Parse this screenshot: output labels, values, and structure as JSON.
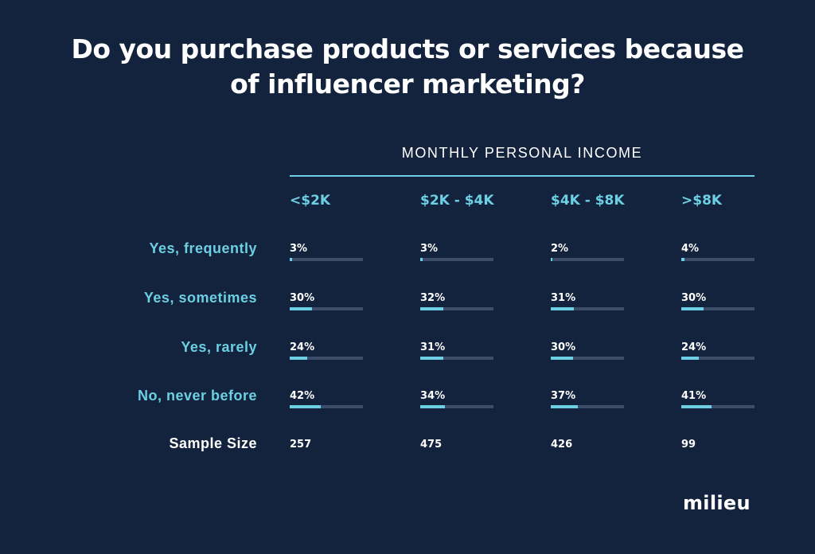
{
  "title": {
    "line1": "Do you purchase products or services because",
    "line2": "of influencer marketing?"
  },
  "logo": "milieu",
  "colors": {
    "background": "#13233d",
    "accent": "#6ccfe3",
    "track": "#3b4d68",
    "text": "#ffffff"
  },
  "chart_data": {
    "type": "table",
    "header": "MONTHLY PERSONAL INCOME",
    "categories": [
      "<$2K",
      "$2K - $4K",
      "$4K - $8K",
      ">$8K"
    ],
    "rows": [
      {
        "label": "Yes, frequently",
        "values": [
          3,
          3,
          2,
          4
        ],
        "display": [
          "3%",
          "3%",
          "2%",
          "4%"
        ]
      },
      {
        "label": "Yes, sometimes",
        "values": [
          30,
          32,
          31,
          30
        ],
        "display": [
          "30%",
          "32%",
          "31%",
          "30%"
        ]
      },
      {
        "label": "Yes, rarely",
        "values": [
          24,
          31,
          30,
          24
        ],
        "display": [
          "24%",
          "31%",
          "30%",
          "24%"
        ]
      },
      {
        "label": "No, never before",
        "values": [
          42,
          34,
          37,
          41
        ],
        "display": [
          "42%",
          "34%",
          "37%",
          "41%"
        ]
      }
    ],
    "sample_size": {
      "label": "Sample Size",
      "values": [
        "257",
        "475",
        "426",
        "99"
      ]
    }
  }
}
